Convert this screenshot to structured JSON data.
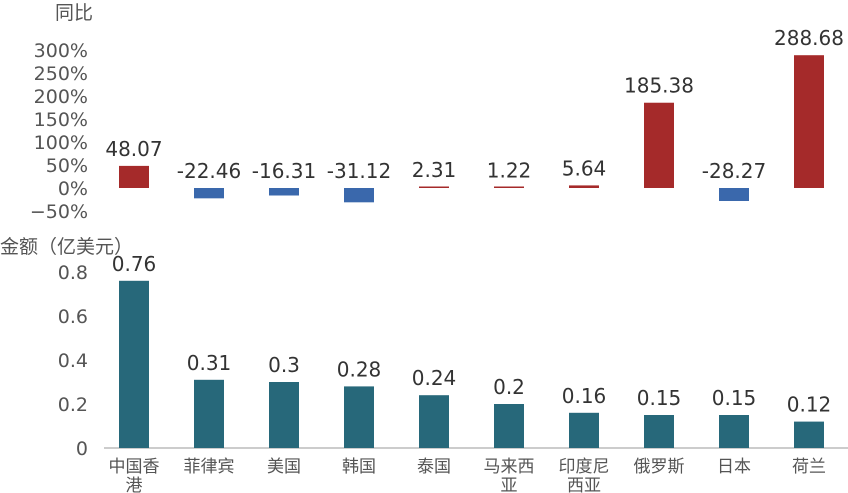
{
  "chart_data": [
    {
      "type": "bar",
      "ylabel": "同比",
      "unit": "%",
      "categories": [
        "中国香港",
        "菲律宾",
        "美国",
        "韩国",
        "泰国",
        "马来西亚",
        "印度尼西亚",
        "俄罗斯",
        "日本",
        "荷兰"
      ],
      "values": [
        48.07,
        -22.46,
        -16.31,
        -31.12,
        2.31,
        1.22,
        5.64,
        185.38,
        -28.27,
        288.68
      ],
      "data_labels": [
        "48.07",
        "-22.46",
        "-16.31",
        "-31.12",
        "2.31",
        "1.22",
        "5.64",
        "185.38",
        "-28.27",
        "288.68"
      ],
      "yticks": [
        "300%",
        "250%",
        "200%",
        "150%",
        "100%",
        "50%",
        "0%",
        "−50%"
      ],
      "ylim": [
        -50,
        300
      ],
      "colors": {
        "positive": "#a52a2a",
        "negative": "#3a68ac"
      },
      "grid": false
    },
    {
      "type": "bar",
      "ylabel": "金额（亿美元）",
      "categories": [
        "中国香港",
        "菲律宾",
        "美国",
        "韩国",
        "泰国",
        "马来西亚",
        "印度尼西亚",
        "俄罗斯",
        "日本",
        "荷兰"
      ],
      "category_label_lines": [
        [
          "中国香",
          "港"
        ],
        [
          "菲律宾"
        ],
        [
          "美国"
        ],
        [
          "韩国"
        ],
        [
          "泰国"
        ],
        [
          "马来西",
          "亚"
        ],
        [
          "印度尼",
          "西亚"
        ],
        [
          "俄罗斯"
        ],
        [
          "日本"
        ],
        [
          "荷兰"
        ]
      ],
      "values": [
        0.76,
        0.31,
        0.3,
        0.28,
        0.24,
        0.2,
        0.16,
        0.15,
        0.15,
        0.12
      ],
      "data_labels": [
        "0.76",
        "0.31",
        "0.3",
        "0.28",
        "0.24",
        "0.2",
        "0.16",
        "0.15",
        "0.15",
        "0.12"
      ],
      "yticks": [
        "0.8",
        "0.6",
        "0.4",
        "0.2",
        "0"
      ],
      "ylim": [
        0,
        0.8
      ],
      "colors": {
        "bar": "#27687a"
      },
      "grid": false
    }
  ]
}
